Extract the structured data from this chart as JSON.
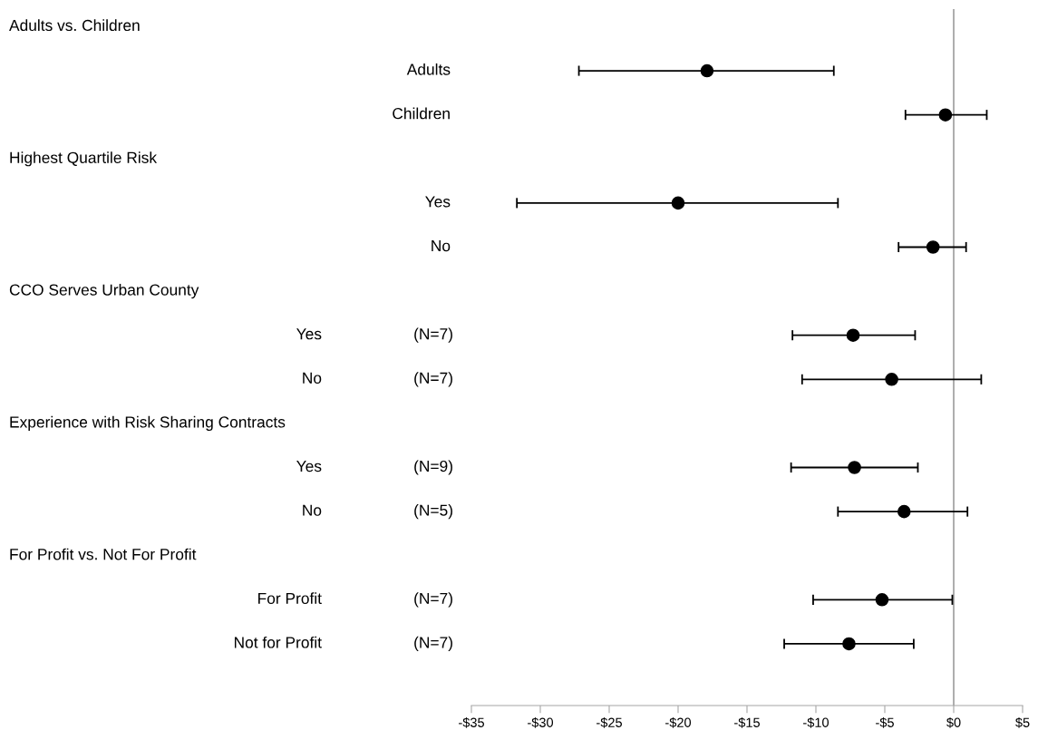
{
  "chart_data": {
    "type": "scatter",
    "orientation": "horizontal",
    "categories": [
      null,
      "Adults",
      "Children",
      null,
      "Yes",
      "No",
      null,
      "Yes (N=7)",
      "No (N=7)",
      null,
      "Yes (N=9)",
      "No (N=5)",
      null,
      "For Profit (N=7)",
      "Not for Profit (N=7)"
    ],
    "annotations": [
      "Adults vs. Children",
      "Highest Quartile Risk",
      "CCO Serves Urban County",
      "Experience with Risk Sharing Contracts",
      "For Profit vs. Not For Profit"
    ],
    "values": [
      null,
      -17.9,
      -0.6,
      null,
      -20.0,
      -1.5,
      null,
      -7.3,
      -4.5,
      null,
      -7.2,
      -3.6,
      null,
      -5.2,
      -7.6
    ],
    "errors": [
      null,
      [
        -27.2,
        -8.7
      ],
      [
        -3.5,
        2.4
      ],
      null,
      [
        -31.7,
        -8.4
      ],
      [
        -4.0,
        0.9
      ],
      null,
      [
        -11.7,
        -2.8
      ],
      [
        -11.0,
        2.0
      ],
      null,
      [
        -11.8,
        -2.6
      ],
      [
        -8.4,
        1.0
      ],
      null,
      [
        -10.2,
        -0.1
      ],
      [
        -12.3,
        -2.9
      ]
    ],
    "color": "#000000",
    "marker": "circle",
    "xlim": [
      -35,
      5
    ],
    "xticks": [
      {
        "value": -35,
        "label": "-$35"
      },
      {
        "value": -30,
        "label": "-$30"
      },
      {
        "value": -25,
        "label": "-$25"
      },
      {
        "value": -20,
        "label": "-$20"
      },
      {
        "value": -15,
        "label": "-$15"
      },
      {
        "value": -10,
        "label": "-$10"
      },
      {
        "value": -5,
        "label": "-$5"
      },
      {
        "value": 0,
        "label": "$0"
      },
      {
        "value": 5,
        "label": "$5"
      }
    ],
    "ref_lines": [
      {
        "axis": "x",
        "value": 0,
        "color": "#a6a6a6"
      }
    ],
    "grid": false
  }
}
